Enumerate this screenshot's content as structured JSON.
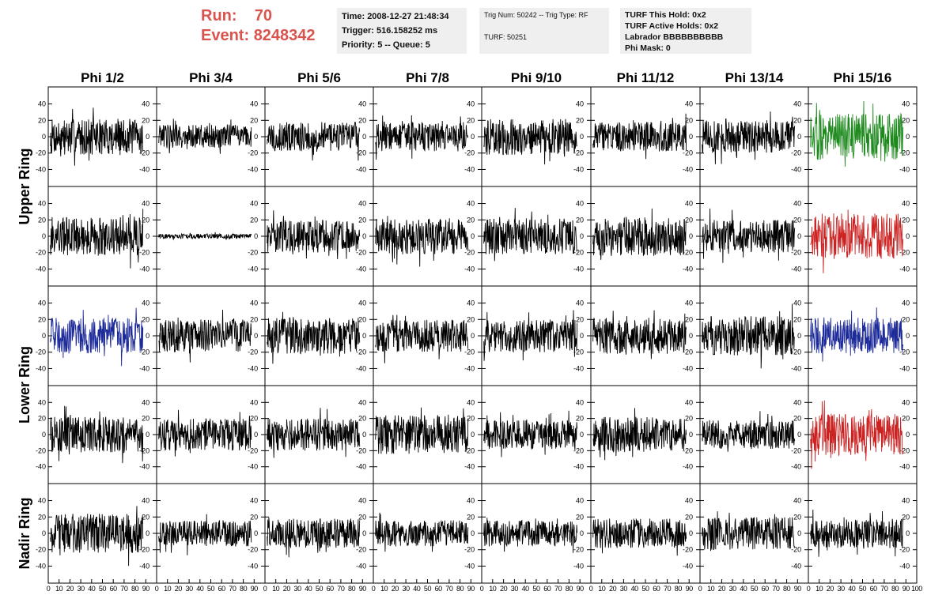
{
  "header": {
    "run_label": "Run:",
    "run_value": "70",
    "event_label": "Event:",
    "event_value": "8248342",
    "time_line": "Time: 2008-12-27 21:48:34",
    "trigger_line": "Trigger: 516.158252 ms",
    "priority_line": "Priority: 5 -- Queue: 5",
    "trig_num_line": "Trig Num: 50242 -- Trig Type: RF",
    "turf_line": "TURF: 50251",
    "turf_this_hold": "TURF This Hold: 0x2",
    "turf_active_holds": "TURF Active Holds: 0x2",
    "labrador": "Labrador BBBBBBBBBB",
    "phi_mask": "Phi Mask: 0"
  },
  "chart_data": {
    "type": "line",
    "columns": [
      "Phi 1/2",
      "Phi 3/4",
      "Phi 5/6",
      "Phi 7/8",
      "Phi 9/10",
      "Phi 11/12",
      "Phi 13/14",
      "Phi 15/16"
    ],
    "row_groups": [
      {
        "label": "Upper Ring",
        "rows": [
          0,
          1
        ]
      },
      {
        "label": "Lower Ring",
        "rows": [
          2,
          3
        ]
      },
      {
        "label": "Nadir Ring",
        "rows": [
          4
        ]
      }
    ],
    "ylim": [
      -55,
      55
    ],
    "yticks": [
      40,
      20,
      0,
      -20,
      -40
    ],
    "xlim": [
      0,
      100
    ],
    "xticks": [
      0,
      10,
      20,
      30,
      40,
      50,
      60,
      70,
      80,
      90,
      100
    ],
    "grid": false,
    "colors": {
      "default": "#000000",
      "green": "#1e8a1e",
      "red": "#cc2222",
      "blue": "#1c2a9a"
    },
    "panels": [
      {
        "row": 0,
        "col": 0,
        "amplitude": 22,
        "color": "default"
      },
      {
        "row": 0,
        "col": 1,
        "amplitude": 15,
        "color": "default"
      },
      {
        "row": 0,
        "col": 2,
        "amplitude": 18,
        "color": "default"
      },
      {
        "row": 0,
        "col": 3,
        "amplitude": 18,
        "color": "default"
      },
      {
        "row": 0,
        "col": 4,
        "amplitude": 22,
        "color": "default"
      },
      {
        "row": 0,
        "col": 5,
        "amplitude": 18,
        "color": "default"
      },
      {
        "row": 0,
        "col": 6,
        "amplitude": 20,
        "color": "default"
      },
      {
        "row": 0,
        "col": 7,
        "amplitude": 28,
        "color": "green"
      },
      {
        "row": 1,
        "col": 0,
        "amplitude": 24,
        "color": "default"
      },
      {
        "row": 1,
        "col": 1,
        "amplitude": 3,
        "color": "default"
      },
      {
        "row": 1,
        "col": 2,
        "amplitude": 20,
        "color": "default"
      },
      {
        "row": 1,
        "col": 3,
        "amplitude": 22,
        "color": "default"
      },
      {
        "row": 1,
        "col": 4,
        "amplitude": 22,
        "color": "default"
      },
      {
        "row": 1,
        "col": 5,
        "amplitude": 24,
        "color": "default"
      },
      {
        "row": 1,
        "col": 6,
        "amplitude": 20,
        "color": "default"
      },
      {
        "row": 1,
        "col": 7,
        "amplitude": 28,
        "color": "red"
      },
      {
        "row": 2,
        "col": 0,
        "amplitude": 22,
        "color": "blue"
      },
      {
        "row": 2,
        "col": 1,
        "amplitude": 20,
        "color": "default"
      },
      {
        "row": 2,
        "col": 2,
        "amplitude": 22,
        "color": "default"
      },
      {
        "row": 2,
        "col": 3,
        "amplitude": 20,
        "color": "default"
      },
      {
        "row": 2,
        "col": 4,
        "amplitude": 20,
        "color": "default"
      },
      {
        "row": 2,
        "col": 5,
        "amplitude": 22,
        "color": "default"
      },
      {
        "row": 2,
        "col": 6,
        "amplitude": 24,
        "color": "default"
      },
      {
        "row": 2,
        "col": 7,
        "amplitude": 22,
        "color": "blue"
      },
      {
        "row": 3,
        "col": 0,
        "amplitude": 22,
        "color": "default"
      },
      {
        "row": 3,
        "col": 1,
        "amplitude": 20,
        "color": "default"
      },
      {
        "row": 3,
        "col": 2,
        "amplitude": 20,
        "color": "default"
      },
      {
        "row": 3,
        "col": 3,
        "amplitude": 24,
        "color": "default"
      },
      {
        "row": 3,
        "col": 4,
        "amplitude": 18,
        "color": "default"
      },
      {
        "row": 3,
        "col": 5,
        "amplitude": 22,
        "color": "default"
      },
      {
        "row": 3,
        "col": 6,
        "amplitude": 18,
        "color": "default"
      },
      {
        "row": 3,
        "col": 7,
        "amplitude": 26,
        "color": "red"
      },
      {
        "row": 4,
        "col": 0,
        "amplitude": 24,
        "color": "default"
      },
      {
        "row": 4,
        "col": 1,
        "amplitude": 16,
        "color": "default"
      },
      {
        "row": 4,
        "col": 2,
        "amplitude": 18,
        "color": "default"
      },
      {
        "row": 4,
        "col": 3,
        "amplitude": 16,
        "color": "default"
      },
      {
        "row": 4,
        "col": 4,
        "amplitude": 16,
        "color": "default"
      },
      {
        "row": 4,
        "col": 5,
        "amplitude": 18,
        "color": "default"
      },
      {
        "row": 4,
        "col": 6,
        "amplitude": 20,
        "color": "default"
      },
      {
        "row": 4,
        "col": 7,
        "amplitude": 18,
        "color": "default"
      }
    ]
  }
}
